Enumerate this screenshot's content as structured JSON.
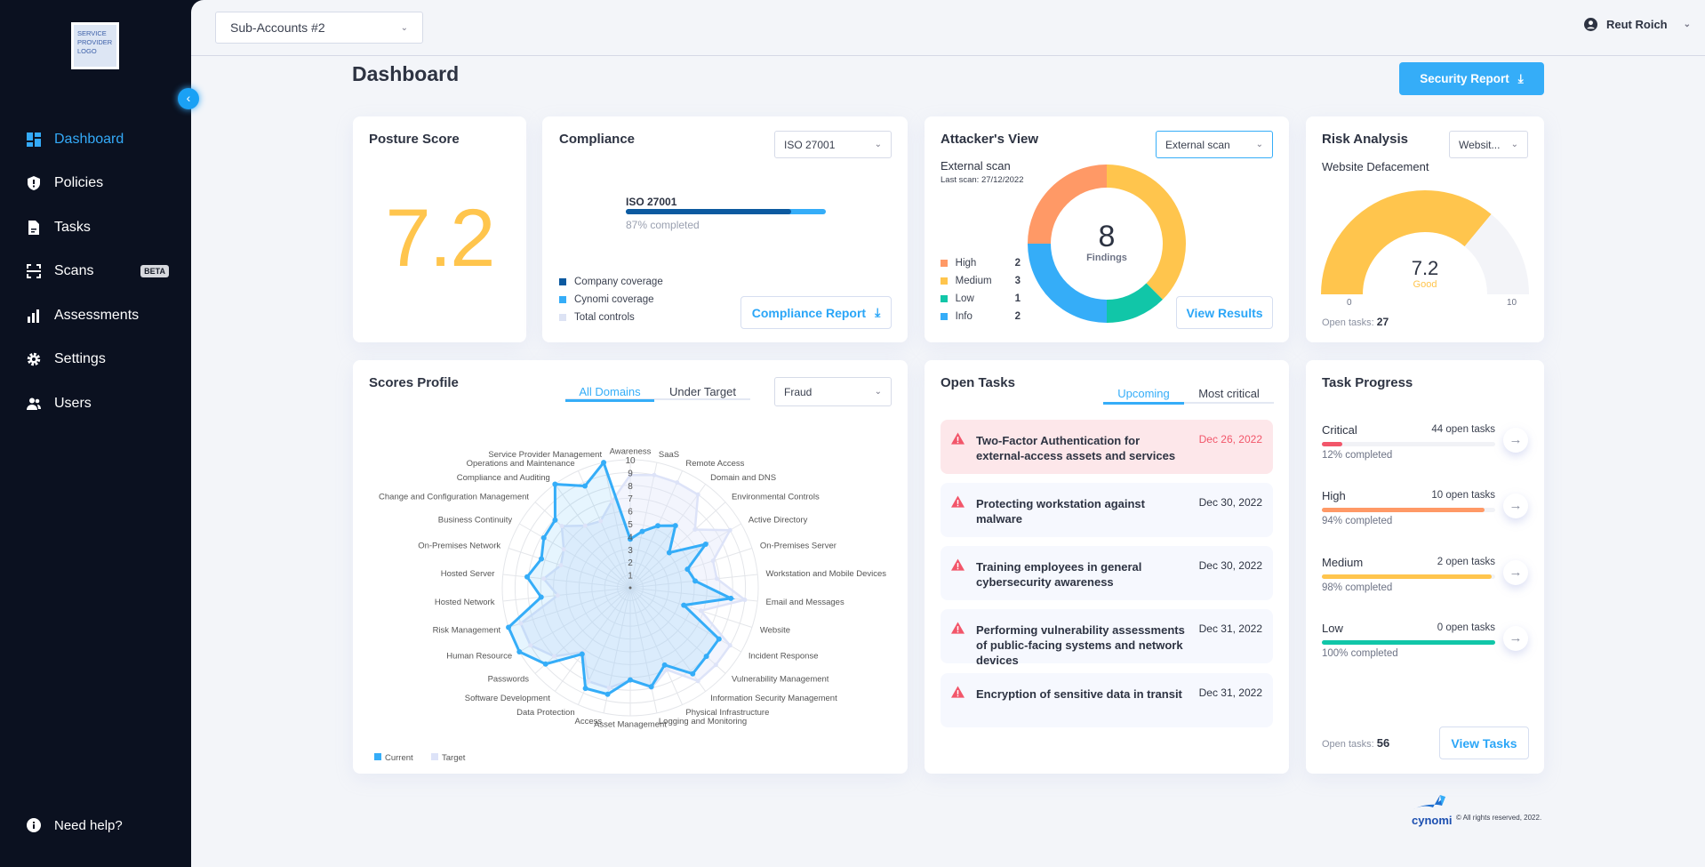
{
  "sidebar": {
    "logo_text": "SERVICE PROVIDER LOGO",
    "items": [
      {
        "label": "Dashboard",
        "icon": "dashboard-icon",
        "active": true
      },
      {
        "label": "Policies",
        "icon": "shield-icon"
      },
      {
        "label": "Tasks",
        "icon": "document-icon"
      },
      {
        "label": "Scans",
        "icon": "scan-icon",
        "badge": "BETA"
      },
      {
        "label": "Assessments",
        "icon": "bar-chart-icon"
      },
      {
        "label": "Settings",
        "icon": "gear-icon"
      },
      {
        "label": "Users",
        "icon": "users-icon"
      }
    ],
    "help": "Need help?"
  },
  "header": {
    "account_select": "Sub-Accounts #2",
    "user": "Reut Roich"
  },
  "page": {
    "title": "Dashboard",
    "security_report": "Security Report"
  },
  "posture": {
    "title": "Posture Score",
    "score": "7.2",
    "color": "#ffc54d"
  },
  "compliance": {
    "title": "Compliance",
    "select": "ISO 27001",
    "framework": "ISO 27001",
    "company_pct": 87,
    "cynomi_pct": 100,
    "completed": "87% completed",
    "legend": [
      {
        "label": "Company coverage",
        "color": "#0c5aa0"
      },
      {
        "label": "Cynomi coverage",
        "color": "#35adf8"
      },
      {
        "label": "Total controls",
        "color": "#dde3f4"
      }
    ],
    "report_button": "Compliance Report"
  },
  "attacker": {
    "title": "Attacker's View",
    "select": "External scan",
    "scan_label": "External scan",
    "last_scan": "Last scan: 27/12/2022",
    "total": "8",
    "total_label": "Findings",
    "findings": [
      {
        "label": "High",
        "value": 2,
        "color": "#ff9966"
      },
      {
        "label": "Medium",
        "value": 3,
        "color": "#ffc54d"
      },
      {
        "label": "Low",
        "value": 1,
        "color": "#11c6a8"
      },
      {
        "label": "Info",
        "value": 2,
        "color": "#35adf8"
      }
    ],
    "order": [
      "Medium",
      "Low",
      "Info",
      "High"
    ],
    "button": "View Results"
  },
  "risk": {
    "title": "Risk Analysis",
    "select": "Websit...",
    "subtitle": "Website Defacement",
    "value": 7.2,
    "value_text": "7.2",
    "rating": "Good",
    "min": "0",
    "max": "10",
    "open_tasks_label": "Open tasks:",
    "open_tasks": "27"
  },
  "scores": {
    "title": "Scores Profile",
    "tabs": [
      "All Domains",
      "Under Target"
    ],
    "select": "Fraud"
  },
  "chart_data": {
    "type": "radar",
    "rmax": 10,
    "ticks": [
      "1",
      "2",
      "3",
      "4",
      "5",
      "6",
      "7",
      "8",
      "9",
      "10"
    ],
    "categories": [
      "Awareness",
      "SaaS",
      "Remote Access",
      "Domain and DNS",
      "Environmental Controls",
      "Active Directory",
      "On-Premises Server",
      "Workstation and Mobile Devices",
      "Email and Messages",
      "Website",
      "Incident Response",
      "Vulnerability Management",
      "Information Security Management",
      "Physical Infrastructure",
      "Logging and Monitoring",
      "Asset Management",
      "Access",
      "Data Protection",
      "Software Development",
      "Passwords",
      "Human Resource",
      "Risk Management",
      "Hosted Network",
      "Hosted Server",
      "On-Premises Network",
      "Business Continuity",
      "Change and Configuration Management",
      "Compliance and Auditing",
      "Operations and Maintenance",
      "Service Provider Management"
    ],
    "series": [
      {
        "name": "Current",
        "color": "#35adf8",
        "values": [
          3.8,
          4.5,
          5.3,
          6.0,
          4.1,
          6.8,
          4.7,
          5.1,
          7.9,
          4.4,
          8.0,
          8.0,
          8.3,
          6.6,
          7.9,
          7.2,
          8.5,
          8.6,
          6.4,
          8.9,
          10,
          10,
          7.0,
          8.1,
          7.3,
          7.8,
          7.9,
          10,
          8.7,
          10
        ]
      },
      {
        "name": "Target",
        "color": "#dde3f8",
        "values": [
          8.8,
          9,
          9,
          9,
          6.8,
          9,
          6.8,
          6.8,
          9,
          5.8,
          9,
          9,
          9,
          7,
          8,
          7.2,
          8,
          8,
          6.2,
          8,
          9,
          9,
          5.7,
          6.8,
          5.7,
          6,
          7.2,
          6,
          5.7,
          6.9
        ]
      }
    ]
  },
  "open_tasks": {
    "title": "Open Tasks",
    "tabs": [
      "Upcoming",
      "Most critical"
    ],
    "items": [
      {
        "title": "Two-Factor Authentication for external-access assets and services",
        "date": "Dec 26, 2022",
        "overdue": true
      },
      {
        "title": "Protecting workstation against malware",
        "date": "Dec 30, 2022"
      },
      {
        "title": "Training employees in general cybersecurity awareness",
        "date": "Dec 30, 2022"
      },
      {
        "title": "Performing vulnerability assessments of public-facing systems and network devices",
        "date": "Dec 31, 2022"
      },
      {
        "title": "Encryption of sensitive data in transit",
        "date": "Dec 31, 2022"
      }
    ]
  },
  "task_progress": {
    "title": "Task Progress",
    "rows": [
      {
        "label": "Critical",
        "count": "44 open tasks",
        "pct": 12,
        "pct_text": "12% completed",
        "color": "#f2566a"
      },
      {
        "label": "High",
        "count": "10 open tasks",
        "pct": 94,
        "pct_text": "94% completed",
        "color": "#ff9966"
      },
      {
        "label": "Medium",
        "count": "2 open tasks",
        "pct": 98,
        "pct_text": "98% completed",
        "color": "#ffc54d"
      },
      {
        "label": "Low",
        "count": "0 open tasks",
        "pct": 100,
        "pct_text": "100% completed",
        "color": "#11c6a8"
      }
    ],
    "open_tasks_label": "Open tasks:",
    "open_tasks": "56",
    "button": "View Tasks"
  },
  "footer": {
    "brand": "cynomi",
    "copyright": "© All rights reserved, 2022."
  }
}
